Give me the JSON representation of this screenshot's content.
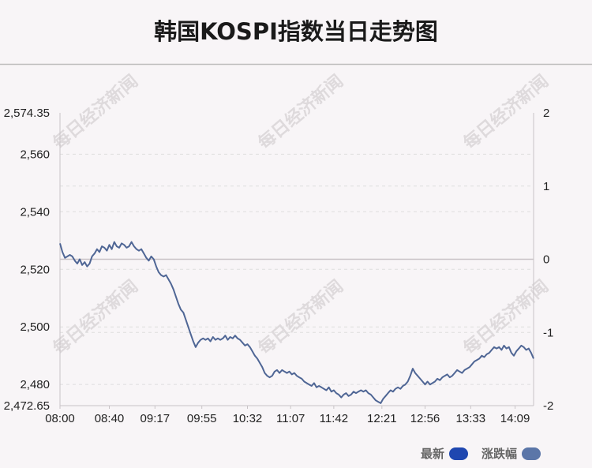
{
  "title": "韩国KOSPI指数当日走势图",
  "watermark": "每日经济新闻",
  "colors": {
    "line": "#4f6695",
    "legend_latest": "#1f47b0",
    "legend_change": "#5b76a8",
    "baseline": "#c8c2c6",
    "grid": "#dedede",
    "axis": "#c9c4c7"
  },
  "chart_data": {
    "type": "line",
    "title": "韩国KOSPI指数当日走势图",
    "xlabel": "",
    "ylabel": "",
    "x_ticks": [
      "08:00",
      "08:40",
      "09:17",
      "09:55",
      "10:32",
      "11:07",
      "11:42",
      "12:21",
      "12:56",
      "13:33",
      "14:09"
    ],
    "x_range": [
      "08:00",
      "14:24"
    ],
    "y_left_ticks": [
      "2,574.35",
      "2,560",
      "2,540",
      "2,520",
      "2,500",
      "2,480",
      "2,472.65"
    ],
    "y_left_range": [
      2472.65,
      2574.35
    ],
    "y_right_ticks": [
      "2",
      "1",
      "0",
      "-1",
      "-2"
    ],
    "y_right_range": [
      -2,
      2
    ],
    "baseline_value": 2523.5,
    "grid": true,
    "legend_position": "bottom-right",
    "legend": [
      "最新",
      "涨跌幅"
    ],
    "series": [
      {
        "name": "最新",
        "points": [
          [
            "08:00",
            2529.0
          ],
          [
            "08:02",
            2526.0
          ],
          [
            "08:04",
            2524.0
          ],
          [
            "08:06",
            2524.5
          ],
          [
            "08:08",
            2525.0
          ],
          [
            "08:10",
            2524.5
          ],
          [
            "08:12",
            2523.0
          ],
          [
            "08:14",
            2522.0
          ],
          [
            "08:16",
            2523.5
          ],
          [
            "08:18",
            2521.5
          ],
          [
            "08:20",
            2522.5
          ],
          [
            "08:22",
            2521.0
          ],
          [
            "08:24",
            2522.0
          ],
          [
            "08:26",
            2524.5
          ],
          [
            "08:28",
            2525.5
          ],
          [
            "08:30",
            2527.0
          ],
          [
            "08:32",
            2526.0
          ],
          [
            "08:34",
            2528.0
          ],
          [
            "08:36",
            2527.5
          ],
          [
            "08:38",
            2526.5
          ],
          [
            "08:40",
            2528.5
          ],
          [
            "08:42",
            2527.0
          ],
          [
            "08:44",
            2529.5
          ],
          [
            "08:46",
            2528.0
          ],
          [
            "08:48",
            2527.5
          ],
          [
            "08:50",
            2529.0
          ],
          [
            "08:52",
            2528.5
          ],
          [
            "08:54",
            2527.5
          ],
          [
            "08:56",
            2528.0
          ],
          [
            "08:58",
            2529.5
          ],
          [
            "09:00",
            2528.0
          ],
          [
            "09:02",
            2527.0
          ],
          [
            "09:04",
            2526.5
          ],
          [
            "09:06",
            2527.0
          ],
          [
            "09:08",
            2525.5
          ],
          [
            "09:10",
            2524.0
          ],
          [
            "09:12",
            2523.0
          ],
          [
            "09:14",
            2524.5
          ],
          [
            "09:16",
            2523.5
          ],
          [
            "09:18",
            2521.0
          ],
          [
            "09:20",
            2519.0
          ],
          [
            "09:22",
            2518.0
          ],
          [
            "09:24",
            2517.5
          ],
          [
            "09:26",
            2518.0
          ],
          [
            "09:28",
            2516.5
          ],
          [
            "09:30",
            2515.0
          ],
          [
            "09:32",
            2513.0
          ],
          [
            "09:34",
            2510.5
          ],
          [
            "09:36",
            2508.0
          ],
          [
            "09:38",
            2506.0
          ],
          [
            "09:40",
            2505.0
          ],
          [
            "09:42",
            2502.5
          ],
          [
            "09:44",
            2500.0
          ],
          [
            "09:46",
            2497.5
          ],
          [
            "09:48",
            2495.0
          ],
          [
            "09:50",
            2493.0
          ],
          [
            "09:52",
            2494.5
          ],
          [
            "09:54",
            2495.5
          ],
          [
            "09:56",
            2496.0
          ],
          [
            "09:58",
            2495.5
          ],
          [
            "10:00",
            2496.0
          ],
          [
            "10:02",
            2495.0
          ],
          [
            "10:04",
            2496.5
          ],
          [
            "10:06",
            2495.5
          ],
          [
            "10:08",
            2496.0
          ],
          [
            "10:10",
            2495.5
          ],
          [
            "10:12",
            2496.0
          ],
          [
            "10:14",
            2497.0
          ],
          [
            "10:16",
            2495.5
          ],
          [
            "10:18",
            2496.5
          ],
          [
            "10:20",
            2496.0
          ],
          [
            "10:22",
            2497.0
          ],
          [
            "10:24",
            2496.0
          ],
          [
            "10:26",
            2495.5
          ],
          [
            "10:28",
            2494.5
          ],
          [
            "10:30",
            2493.5
          ],
          [
            "10:32",
            2494.0
          ],
          [
            "10:34",
            2493.0
          ],
          [
            "10:36",
            2491.5
          ],
          [
            "10:38",
            2490.0
          ],
          [
            "10:40",
            2489.0
          ],
          [
            "10:42",
            2487.5
          ],
          [
            "10:44",
            2486.0
          ],
          [
            "10:46",
            2484.0
          ],
          [
            "10:48",
            2483.0
          ],
          [
            "10:50",
            2482.5
          ],
          [
            "10:52",
            2483.0
          ],
          [
            "10:54",
            2484.5
          ],
          [
            "10:56",
            2485.0
          ],
          [
            "10:58",
            2484.0
          ],
          [
            "11:00",
            2485.0
          ],
          [
            "11:02",
            2484.5
          ],
          [
            "11:04",
            2484.0
          ],
          [
            "11:06",
            2484.5
          ],
          [
            "11:08",
            2483.5
          ],
          [
            "11:10",
            2484.0
          ],
          [
            "11:12",
            2483.0
          ],
          [
            "11:14",
            2482.5
          ],
          [
            "11:16",
            2482.0
          ],
          [
            "11:18",
            2481.0
          ],
          [
            "11:20",
            2480.5
          ],
          [
            "11:22",
            2480.0
          ],
          [
            "11:24",
            2479.5
          ],
          [
            "11:26",
            2480.5
          ],
          [
            "11:28",
            2479.0
          ],
          [
            "11:30",
            2479.5
          ],
          [
            "11:32",
            2479.0
          ],
          [
            "11:34",
            2478.5
          ],
          [
            "11:36",
            2478.0
          ],
          [
            "11:38",
            2479.0
          ],
          [
            "11:40",
            2477.5
          ],
          [
            "11:42",
            2478.0
          ],
          [
            "11:44",
            2477.0
          ],
          [
            "11:46",
            2476.5
          ],
          [
            "11:48",
            2475.5
          ],
          [
            "11:50",
            2476.5
          ],
          [
            "11:52",
            2477.0
          ],
          [
            "11:54",
            2476.0
          ],
          [
            "11:56",
            2476.5
          ],
          [
            "11:58",
            2477.5
          ],
          [
            "12:00",
            2477.0
          ],
          [
            "12:02",
            2477.5
          ],
          [
            "12:04",
            2478.0
          ],
          [
            "12:06",
            2477.5
          ],
          [
            "12:08",
            2478.0
          ],
          [
            "12:10",
            2477.0
          ],
          [
            "12:12",
            2476.5
          ],
          [
            "12:14",
            2475.5
          ],
          [
            "12:16",
            2474.5
          ],
          [
            "12:18",
            2474.0
          ],
          [
            "12:20",
            2473.5
          ],
          [
            "12:22",
            2475.0
          ],
          [
            "12:24",
            2476.0
          ],
          [
            "12:26",
            2477.0
          ],
          [
            "12:28",
            2478.0
          ],
          [
            "12:30",
            2477.5
          ],
          [
            "12:32",
            2478.5
          ],
          [
            "12:34",
            2479.0
          ],
          [
            "12:36",
            2478.5
          ],
          [
            "12:38",
            2479.5
          ],
          [
            "12:40",
            2480.0
          ],
          [
            "12:42",
            2481.0
          ],
          [
            "12:44",
            2483.0
          ],
          [
            "12:46",
            2485.5
          ],
          [
            "12:48",
            2484.0
          ],
          [
            "12:50",
            2483.0
          ],
          [
            "12:52",
            2482.0
          ],
          [
            "12:54",
            2481.0
          ],
          [
            "12:56",
            2480.0
          ],
          [
            "12:58",
            2481.0
          ],
          [
            "13:00",
            2480.0
          ],
          [
            "13:02",
            2480.5
          ],
          [
            "13:04",
            2481.0
          ],
          [
            "13:06",
            2482.0
          ],
          [
            "13:08",
            2481.5
          ],
          [
            "13:10",
            2482.5
          ],
          [
            "13:12",
            2483.0
          ],
          [
            "13:14",
            2483.5
          ],
          [
            "13:16",
            2482.5
          ],
          [
            "13:18",
            2483.0
          ],
          [
            "13:20",
            2484.0
          ],
          [
            "13:22",
            2485.0
          ],
          [
            "13:24",
            2484.5
          ],
          [
            "13:26",
            2484.0
          ],
          [
            "13:28",
            2485.0
          ],
          [
            "13:30",
            2485.5
          ],
          [
            "13:32",
            2486.0
          ],
          [
            "13:34",
            2487.0
          ],
          [
            "13:36",
            2488.0
          ],
          [
            "13:38",
            2488.5
          ],
          [
            "13:40",
            2489.0
          ],
          [
            "13:42",
            2490.0
          ],
          [
            "13:44",
            2489.5
          ],
          [
            "13:46",
            2490.5
          ],
          [
            "13:48",
            2491.0
          ],
          [
            "13:50",
            2492.0
          ],
          [
            "13:52",
            2493.0
          ],
          [
            "13:54",
            2492.5
          ],
          [
            "13:56",
            2493.0
          ],
          [
            "13:58",
            2492.0
          ],
          [
            "14:00",
            2493.5
          ],
          [
            "14:02",
            2492.5
          ],
          [
            "14:04",
            2493.0
          ],
          [
            "14:06",
            2491.0
          ],
          [
            "14:08",
            2490.0
          ],
          [
            "14:10",
            2491.5
          ],
          [
            "14:12",
            2492.5
          ],
          [
            "14:14",
            2493.5
          ],
          [
            "14:16",
            2493.0
          ],
          [
            "14:18",
            2492.0
          ],
          [
            "14:20",
            2492.5
          ],
          [
            "14:22",
            2491.0
          ],
          [
            "14:24",
            2489.0
          ]
        ]
      }
    ]
  }
}
